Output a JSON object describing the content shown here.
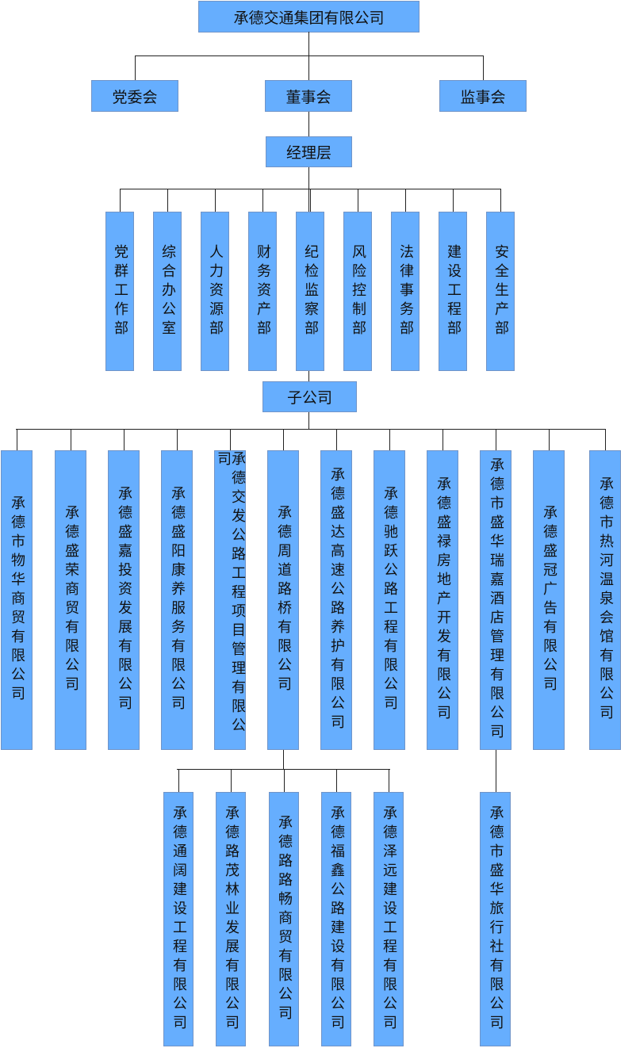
{
  "root": "承德交通集团有限公司",
  "governance": [
    "党委会",
    "董事会",
    "监事会"
  ],
  "management": "经理层",
  "departments": [
    "党群工作部",
    "综合办公室",
    "人力资源部",
    "财务资产部",
    "纪检监察部",
    "风险控制部",
    "法律事务部",
    "建设工程部",
    "安全生产部"
  ],
  "subsidiaries_label": "子公司",
  "subsidiaries": [
    "承德市物华商贸有限公司",
    "承德盛荣商贸有限公司",
    "承德盛嘉投资发展有限公司",
    "承德盛阳康养服务有限公司",
    "承德交发公路工程项目管理有限公司",
    "承德周道路桥有限公司",
    "承德盛达高速公路养护有限公司",
    "承德驰跃公路工程有限公司",
    "承德盛禄房地产开发有限公司",
    "承德市盛华瑞嘉酒店管理有限公司",
    "承德盛冠广告有限公司",
    "承德市热河温泉会馆有限公司"
  ],
  "zhoudao_children": [
    "承德通阔建设工程有限公司",
    "承德路茂林业发展有限公司",
    "承德路路畅商贸有限公司",
    "承德福鑫公路建设有限公司",
    "承德泽远建设工程有限公司"
  ],
  "ruijia_children": [
    "承德市盛华旅行社有限公司"
  ],
  "colors": {
    "box_fill": "#66aefe",
    "box_border": "#7094c8",
    "line": "#222222"
  }
}
